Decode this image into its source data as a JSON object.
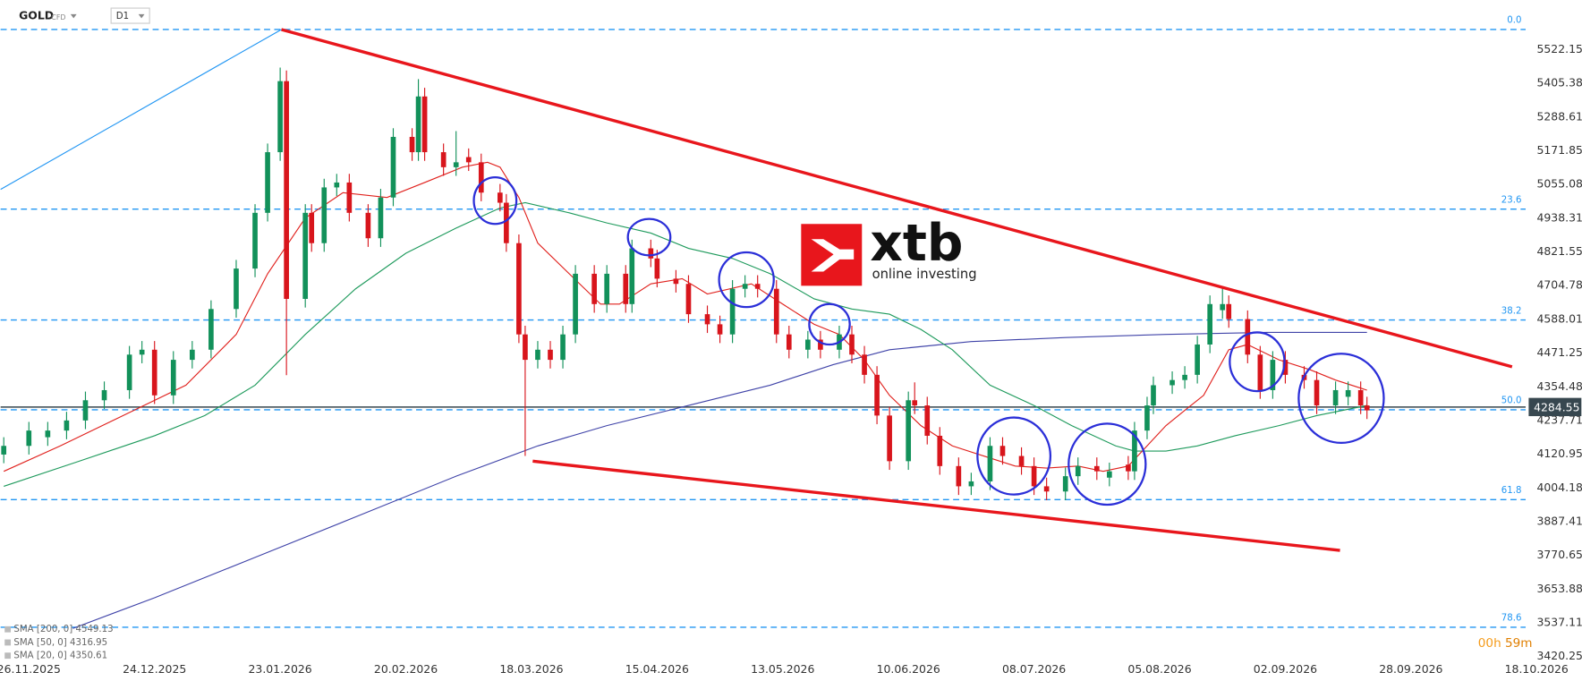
{
  "chart_data": {
    "type": "candlestick",
    "symbol": "GOLD",
    "instrument": "CFD",
    "timeframe": "D1",
    "watermark": {
      "brand": "xtb",
      "tagline": "online investing"
    },
    "countdown": [
      "00h",
      "59m"
    ],
    "up_color": "#12915a",
    "down_color": "#d8151c",
    "xlim": [
      -4.5,
      246
    ],
    "ylim": [
      3413,
      5694
    ],
    "grid": false,
    "xticks": [
      {
        "value": 0,
        "label": "26.11.2025"
      },
      {
        "value": 20,
        "label": "24.12.2025"
      },
      {
        "value": 40,
        "label": "23.01.2026"
      },
      {
        "value": 60,
        "label": "20.02.2026"
      },
      {
        "value": 80,
        "label": "18.03.2026"
      },
      {
        "value": 100,
        "label": "15.04.2026"
      },
      {
        "value": 120,
        "label": "13.05.2026"
      },
      {
        "value": 140,
        "label": "10.06.2026"
      },
      {
        "value": 160,
        "label": "08.07.2026"
      },
      {
        "value": 180,
        "label": "05.08.2026"
      },
      {
        "value": 200,
        "label": "02.09.2026"
      },
      {
        "value": 220,
        "label": "28.09.2026"
      },
      {
        "value": 240,
        "label": "18.10.2026"
      }
    ],
    "yticks": [
      5522.15,
      5405.38,
      5288.61,
      5171.85,
      5055.08,
      4938.31,
      4821.55,
      4704.78,
      4588.01,
      4471.25,
      4354.48,
      4237.71,
      4120.95,
      4004.18,
      3887.41,
      3770.65,
      3653.88,
      3537.11,
      3420.25
    ],
    "last_price": 4284.55,
    "fib_color": "#2196f3",
    "fib_levels": [
      {
        "label": "0.0",
        "price": 5592
      },
      {
        "label": "23.6",
        "price": 4970
      },
      {
        "label": "38.2",
        "price": 4586
      },
      {
        "label": "50.0",
        "price": 4275
      },
      {
        "label": "61.8",
        "price": 3964
      },
      {
        "label": "78.6",
        "price": 3522
      }
    ],
    "trendlines": [
      {
        "color": "#e8161c",
        "x": [
          40.2,
          236.1
        ],
        "values": [
          5592,
          4424
        ]
      },
      {
        "color": "#e8161c",
        "x": [
          80.2,
          208.7
        ],
        "values": [
          4097,
          3788
        ]
      },
      {
        "color": "#2196f3",
        "x": [
          -4.5,
          40.2
        ],
        "values": [
          5038,
          5592
        ]
      }
    ],
    "candles": {
      "x": [
        -4,
        0,
        3,
        6,
        9,
        12,
        16,
        18,
        20,
        23,
        26,
        29,
        33,
        36,
        38,
        40,
        41,
        44,
        45,
        47,
        49,
        51,
        54,
        56,
        58,
        61,
        62,
        63,
        66,
        68,
        70,
        72,
        75,
        76,
        78,
        79,
        81,
        83,
        85,
        87,
        90,
        92,
        95,
        96,
        99,
        100,
        103,
        105,
        108,
        110,
        112,
        114,
        116,
        119,
        121,
        124,
        126,
        129,
        131,
        133,
        135,
        137,
        140,
        141,
        143,
        145,
        148,
        150,
        153,
        155,
        158,
        160,
        162,
        165,
        167,
        170,
        172,
        175,
        176,
        178,
        179,
        182,
        184,
        186,
        188,
        190,
        191,
        194,
        196,
        198,
        200,
        203,
        205,
        208,
        210,
        212,
        213
      ],
      "open": [
        4120,
        4150,
        4180,
        4203,
        4238,
        4308,
        4343,
        4466,
        4483,
        4325,
        4448,
        4483,
        4624,
        4764,
        4957,
        5167,
        5413,
        4659,
        4957,
        4852,
        5045,
        5062,
        4957,
        4869,
        5010,
        5220,
        5167,
        5360,
        5167,
        5115,
        5150,
        5132,
        5027,
        4992,
        4852,
        4536,
        4448,
        4483,
        4448,
        4536,
        4746,
        4641,
        4746,
        4641,
        4834,
        4799,
        4729,
        4711,
        4606,
        4571,
        4536,
        4694,
        4711,
        4694,
        4536,
        4483,
        4518,
        4483,
        4536,
        4466,
        4396,
        4255,
        4097,
        4308,
        4290,
        4185,
        4080,
        4010,
        4027,
        4150,
        4115,
        4080,
        4010,
        3992,
        4045,
        4080,
        4040,
        4085,
        4062,
        4203,
        4290,
        4360,
        4378,
        4396,
        4501,
        4620,
        4641,
        4589,
        4466,
        4343,
        4448,
        4396,
        4378,
        4290,
        4320,
        4343,
        4290
      ],
      "high": [
        4180,
        4233,
        4233,
        4268,
        4338,
        4373,
        4496,
        4513,
        4513,
        4478,
        4513,
        4654,
        4794,
        4987,
        5197,
        5460,
        5450,
        4987,
        4987,
        5075,
        5092,
        5092,
        4987,
        5040,
        5250,
        5250,
        5420,
        5390,
        5197,
        5240,
        5180,
        5162,
        5057,
        5022,
        4882,
        4566,
        4513,
        4513,
        4566,
        4776,
        4776,
        4776,
        4776,
        4864,
        4864,
        4829,
        4759,
        4741,
        4636,
        4601,
        4724,
        4741,
        4741,
        4724,
        4566,
        4548,
        4548,
        4566,
        4566,
        4496,
        4426,
        4285,
        4338,
        4370,
        4320,
        4215,
        4110,
        4057,
        4180,
        4180,
        4145,
        4110,
        4040,
        4075,
        4110,
        4110,
        4092,
        4115,
        4233,
        4320,
        4390,
        4408,
        4426,
        4531,
        4671,
        4700,
        4671,
        4619,
        4496,
        4478,
        4478,
        4426,
        4408,
        4373,
        4373,
        4373,
        4320
      ],
      "low": [
        4090,
        4120,
        4150,
        4173,
        4208,
        4278,
        4313,
        4436,
        4295,
        4295,
        4418,
        4453,
        4594,
        4734,
        4927,
        5137,
        4395,
        4629,
        4822,
        4822,
        5015,
        4927,
        4839,
        4839,
        4980,
        5137,
        5137,
        5137,
        5085,
        5085,
        5102,
        4997,
        4962,
        4822,
        4506,
        4115,
        4418,
        4418,
        4418,
        4506,
        4611,
        4611,
        4611,
        4611,
        4769,
        4699,
        4681,
        4576,
        4541,
        4506,
        4506,
        4664,
        4664,
        4506,
        4453,
        4453,
        4453,
        4453,
        4436,
        4366,
        4225,
        4067,
        4067,
        4260,
        4155,
        4050,
        3980,
        3980,
        3997,
        4085,
        4050,
        3980,
        3962,
        3962,
        4015,
        4032,
        4010,
        4032,
        4032,
        4173,
        4260,
        4330,
        4348,
        4366,
        4471,
        4590,
        4559,
        4436,
        4313,
        4313,
        4366,
        4348,
        4260,
        4260,
        4290,
        4260,
        4243
      ],
      "close": [
        4150,
        4203,
        4203,
        4238,
        4308,
        4343,
        4466,
        4483,
        4325,
        4448,
        4483,
        4624,
        4764,
        4957,
        5167,
        5413,
        4659,
        4957,
        4852,
        5045,
        5062,
        4957,
        4869,
        5010,
        5220,
        5167,
        5360,
        5167,
        5115,
        5132,
        5132,
        5027,
        4992,
        4852,
        4536,
        4448,
        4483,
        4448,
        4536,
        4746,
        4641,
        4746,
        4641,
        4834,
        4799,
        4729,
        4711,
        4606,
        4571,
        4536,
        4694,
        4711,
        4694,
        4536,
        4483,
        4518,
        4483,
        4536,
        4466,
        4396,
        4255,
        4097,
        4308,
        4290,
        4185,
        4080,
        4010,
        4027,
        4150,
        4115,
        4080,
        4010,
        3992,
        4045,
        4080,
        4062,
        4062,
        4062,
        4203,
        4290,
        4360,
        4378,
        4396,
        4501,
        4641,
        4641,
        4589,
        4466,
        4343,
        4448,
        4396,
        4378,
        4290,
        4343,
        4343,
        4290,
        4273
      ]
    },
    "series": [
      {
        "name": "SMA [200, 0]",
        "last": 4549.13,
        "color": "#3f43a8",
        "x": [
          7,
          20,
          36,
          52,
          68,
          81,
          92,
          105,
          118,
          128,
          137,
          150,
          165,
          181,
          197,
          213
        ],
        "values": [
          3518,
          3624,
          3764,
          3904,
          4045,
          4150,
          4220,
          4290,
          4360,
          4431,
          4483,
          4511,
          4525,
          4536,
          4543,
          4543
        ]
      },
      {
        "name": "SMA [50, 0]",
        "last": 4316.95,
        "color": "#1e9a5c",
        "x": [
          -4,
          8,
          20,
          28,
          36,
          44,
          52,
          60,
          68,
          75,
          79,
          86,
          92,
          99,
          105,
          112,
          118,
          125,
          131,
          137,
          142,
          147,
          153,
          160,
          166,
          173,
          176,
          181,
          186,
          192,
          199,
          205,
          213
        ],
        "values": [
          4010,
          4097,
          4185,
          4255,
          4360,
          4536,
          4694,
          4817,
          4904,
          4974,
          4992,
          4957,
          4922,
          4887,
          4834,
          4799,
          4746,
          4659,
          4624,
          4606,
          4553,
          4483,
          4360,
          4290,
          4220,
          4150,
          4132,
          4132,
          4150,
          4185,
          4220,
          4255,
          4290
        ]
      },
      {
        "name": "SMA [20, 0]",
        "last": 4350.61,
        "color": "#e0201c",
        "x": [
          -4,
          5,
          15,
          25,
          33,
          38,
          44,
          50,
          57,
          63,
          69,
          73,
          75,
          78,
          81,
          86,
          91,
          94,
          99,
          104,
          108,
          115,
          120,
          125,
          129,
          133,
          137,
          142,
          147,
          152,
          157,
          162,
          167,
          171,
          175,
          178,
          181,
          184,
          187,
          191,
          194,
          199,
          204,
          208,
          213
        ],
        "values": [
          4062,
          4150,
          4255,
          4360,
          4536,
          4746,
          4939,
          5027,
          5010,
          5062,
          5115,
          5132,
          5115,
          5010,
          4852,
          4746,
          4641,
          4641,
          4711,
          4729,
          4676,
          4711,
          4641,
          4571,
          4536,
          4448,
          4325,
          4220,
          4150,
          4115,
          4080,
          4073,
          4080,
          4062,
          4080,
          4150,
          4220,
          4273,
          4325,
          4483,
          4501,
          4448,
          4413,
          4378,
          4343
        ]
      }
    ]
  }
}
